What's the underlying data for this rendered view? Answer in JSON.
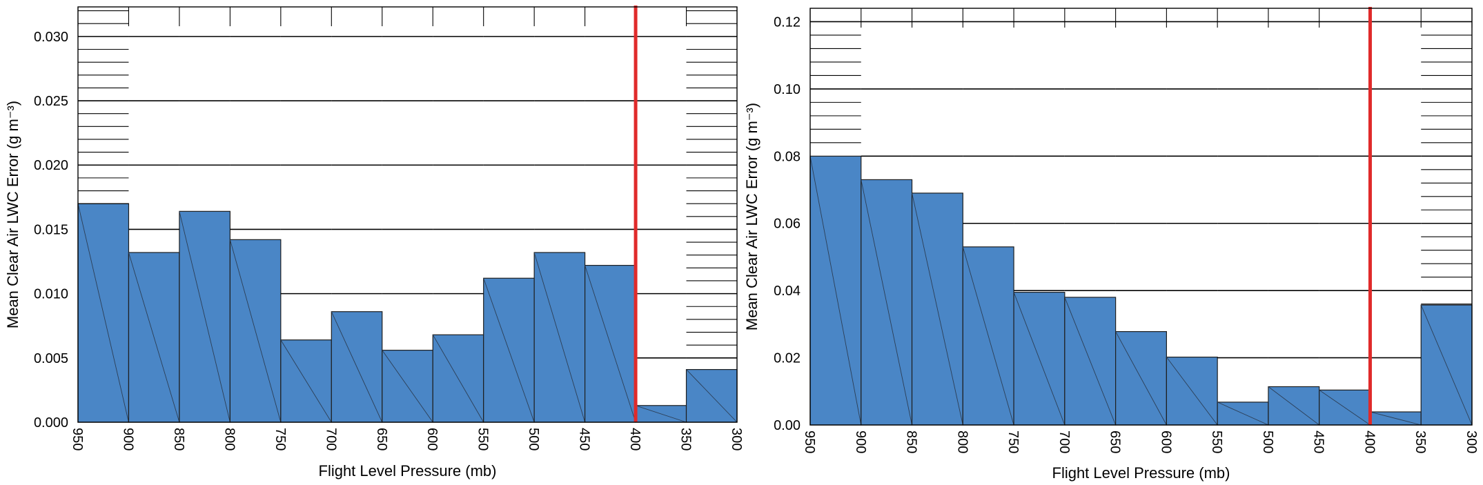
{
  "colors": {
    "bar": "#4a86c6",
    "reference_line": "#e02a2a"
  },
  "chart_data": [
    {
      "type": "bar",
      "xlabel": "Flight Level Pressure (mb)",
      "ylabel": "Mean Clear Air LWC Error (g m⁻³)",
      "xlim": [
        950,
        300
      ],
      "ylim": [
        0,
        0.0323
      ],
      "x_ticks": [
        "950",
        "900",
        "850",
        "800",
        "750",
        "700",
        "650",
        "600",
        "550",
        "500",
        "450",
        "400",
        "350",
        "300"
      ],
      "y_ticks": [
        "0.000",
        "0.005",
        "0.010",
        "0.015",
        "0.020",
        "0.025",
        "0.030"
      ],
      "bin_edges": [
        950,
        900,
        850,
        800,
        750,
        700,
        650,
        600,
        550,
        500,
        450,
        400,
        350,
        300
      ],
      "values": [
        0.017,
        0.0132,
        0.0164,
        0.0142,
        0.0064,
        0.0086,
        0.0056,
        0.0068,
        0.0112,
        0.0132,
        0.0122,
        0.0013,
        0.0041
      ],
      "reference_line_x": 400,
      "grid": true
    },
    {
      "type": "bar",
      "xlabel": "Flight Level Pressure (mb)",
      "ylabel": "Mean Clear Air LWC Error (g m⁻³)",
      "xlim": [
        950,
        300
      ],
      "ylim": [
        0,
        0.124
      ],
      "x_ticks": [
        "950",
        "900",
        "850",
        "800",
        "750",
        "700",
        "650",
        "600",
        "550",
        "500",
        "450",
        "400",
        "350",
        "300"
      ],
      "y_ticks": [
        "0.00",
        "0.02",
        "0.04",
        "0.06",
        "0.08",
        "0.10",
        "0.12"
      ],
      "bin_edges": [
        950,
        900,
        850,
        800,
        750,
        700,
        650,
        600,
        550,
        500,
        450,
        400,
        350,
        300
      ],
      "values": [
        0.08,
        0.073,
        0.069,
        0.053,
        0.0395,
        0.038,
        0.0278,
        0.0202,
        0.0068,
        0.0114,
        0.0104,
        0.0039,
        0.0357
      ],
      "reference_line_x": 400,
      "grid": true
    }
  ]
}
